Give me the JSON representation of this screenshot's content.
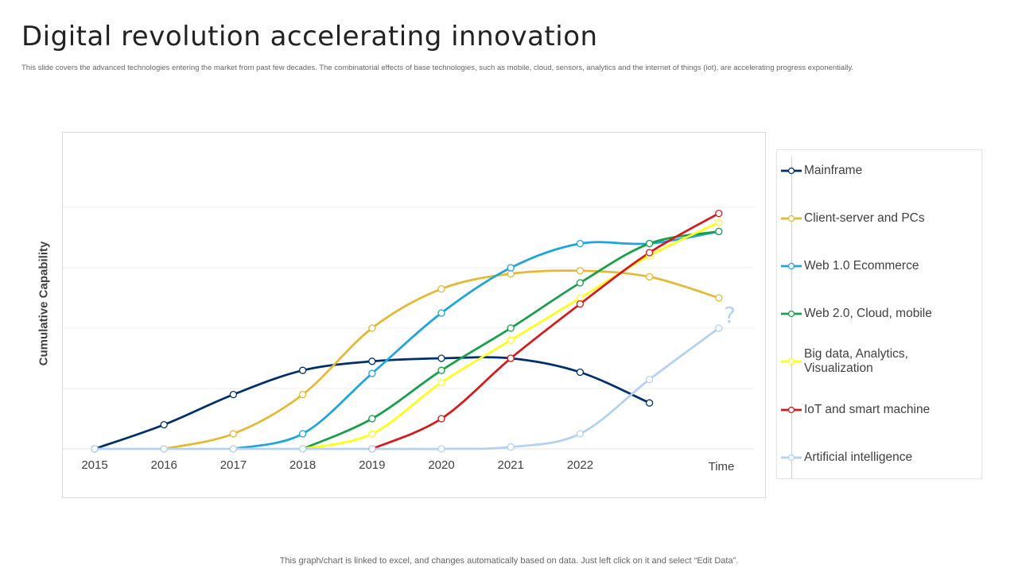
{
  "title": "Digital revolution accelerating innovation",
  "subtitle": "This slide covers the advanced technologies entering the market  from past few decades. The combinatorial effects of base technologies, such as mobile, cloud, sensors, analytics and the internet of things (iot), are accelerating progress exponentially.",
  "footer": "This graph/chart is linked to excel,  and changes automatically based on data. Just left click on it and select “Edit Data”.",
  "chart_data": {
    "type": "line",
    "title": "",
    "xlabel": "Time",
    "ylabel": "Cumulative Capability",
    "x": [
      2015,
      2016,
      2017,
      2018,
      2019,
      2020,
      2021,
      2022,
      2023,
      2024
    ],
    "x_tick_labels": [
      "2015",
      "2016",
      "2017",
      "2018",
      "2019",
      "2020",
      "2021",
      "2022"
    ],
    "ylim": [
      0,
      5.2
    ],
    "grid_y": [
      1,
      2,
      3,
      4
    ],
    "annotation": "?",
    "series": [
      {
        "name": "Mainframe",
        "color": "#002f6c",
        "points": [
          [
            2015,
            0
          ],
          [
            2016,
            0.4
          ],
          [
            2017,
            0.9
          ],
          [
            2018,
            1.3
          ],
          [
            2019,
            1.45
          ],
          [
            2020,
            1.5
          ],
          [
            2021,
            1.5
          ],
          [
            2022,
            1.27
          ],
          [
            2023,
            0.76
          ]
        ]
      },
      {
        "name": "Client-server and PCs",
        "color": "#e6b935",
        "points": [
          [
            2016,
            0
          ],
          [
            2017,
            0.25
          ],
          [
            2018,
            0.9
          ],
          [
            2019,
            2.0
          ],
          [
            2020,
            2.65
          ],
          [
            2021,
            2.9
          ],
          [
            2022,
            2.95
          ],
          [
            2023,
            2.85
          ],
          [
            2024,
            2.5
          ]
        ]
      },
      {
        "name": "Web 1.0 Ecommerce",
        "color": "#1ea5dc",
        "points": [
          [
            2017,
            0
          ],
          [
            2018,
            0.25
          ],
          [
            2019,
            1.25
          ],
          [
            2020,
            2.25
          ],
          [
            2021,
            3.0
          ],
          [
            2022,
            3.4
          ],
          [
            2023,
            3.4
          ],
          [
            2024,
            3.6
          ]
        ]
      },
      {
        "name": "Web 2.0, Cloud, mobile",
        "color": "#16a04a",
        "points": [
          [
            2018,
            0
          ],
          [
            2019,
            0.5
          ],
          [
            2020,
            1.3
          ],
          [
            2021,
            2.0
          ],
          [
            2022,
            2.75
          ],
          [
            2023,
            3.4
          ],
          [
            2024,
            3.6
          ]
        ]
      },
      {
        "name": "Big data, Analytics, Visualization",
        "color": "#ffff14",
        "points": [
          [
            2018,
            0
          ],
          [
            2019,
            0.25
          ],
          [
            2020,
            1.1
          ],
          [
            2021,
            1.8
          ],
          [
            2022,
            2.5
          ],
          [
            2023,
            3.2
          ],
          [
            2024,
            3.75
          ]
        ]
      },
      {
        "name": "IoT and smart machine",
        "color": "#d7191c",
        "points": [
          [
            2019,
            0
          ],
          [
            2020,
            0.5
          ],
          [
            2021,
            1.5
          ],
          [
            2022,
            2.4
          ],
          [
            2023,
            3.25
          ],
          [
            2024,
            3.9
          ]
        ]
      },
      {
        "name": "Artificial intelligence",
        "color": "#b4d2f0",
        "points": [
          [
            2015,
            0
          ],
          [
            2016,
            0
          ],
          [
            2017,
            0
          ],
          [
            2018,
            0
          ],
          [
            2019,
            0
          ],
          [
            2020,
            0
          ],
          [
            2021,
            0.03
          ],
          [
            2022,
            0.25
          ],
          [
            2023,
            1.15
          ],
          [
            2024,
            2.0
          ]
        ]
      }
    ]
  }
}
